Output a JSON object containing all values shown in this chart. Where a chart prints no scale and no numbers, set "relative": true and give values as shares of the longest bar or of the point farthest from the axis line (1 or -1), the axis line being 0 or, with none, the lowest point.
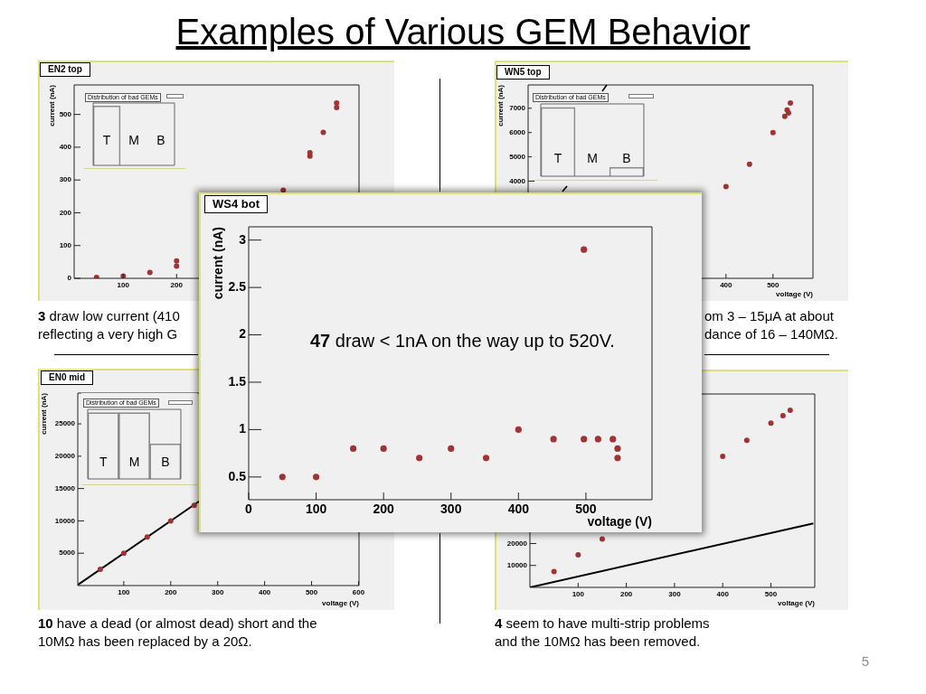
{
  "chart_data": [
    {
      "type": "other",
      "title": "Examples of Various GEM Behavior",
      "annotations": [
        "5"
      ]
    },
    {
      "type": "scatter",
      "title": "EN2 top",
      "ylabel": "current (nA)",
      "xlim": [
        8,
        542
      ],
      "ylim": [
        0,
        590
      ],
      "xticks": [
        100,
        200
      ],
      "yticks": [
        0,
        100,
        200,
        300,
        400,
        500
      ],
      "marker": "circle",
      "series": [
        {
          "color": "#9e3434",
          "x": [
            50,
            100,
            150,
            200,
            200,
            400,
            450,
            450,
            475,
            500,
            500
          ],
          "values": [
            3,
            7,
            18,
            37,
            53,
            269,
            383,
            373,
            445,
            535,
            521
          ]
        }
      ],
      "annotations": [
        "3 draw low current (410\nreflecting a very high G"
      ]
    },
    {
      "type": "bar",
      "title": "Distribution of bad GEMs",
      "categories": [
        "T",
        "M",
        "B"
      ],
      "values": [
        1,
        0,
        0
      ],
      "relative": true,
      "color": "#8c8c8c"
    },
    {
      "type": "scatter",
      "title": "WN5 top",
      "xlabel": "voltage (V)",
      "ylabel": "current (nA)",
      "xlim": [
        -21,
        585
      ],
      "ylim": [
        0,
        7960
      ],
      "xticks": [
        400,
        500
      ],
      "yticks": [
        4000,
        5000,
        6000,
        7000
      ],
      "marker": "circle",
      "series": [
        {
          "color": "#9e3434",
          "x": [
            400,
            450,
            500,
            525,
            530,
            533,
            537
          ],
          "values": [
            3780,
            4700,
            6000,
            6670,
            6930,
            6810,
            7220
          ]
        }
      ],
      "annotations": [
        "om 3 – 15μA at about\ndance of 16 – 140MΩ."
      ]
    },
    {
      "type": "bar",
      "title": "Distribution of bad GEMs",
      "categories": [
        "T",
        "M",
        "B"
      ],
      "values": [
        1,
        0,
        0.13
      ],
      "relative": true,
      "color": "#8c8c8c"
    },
    {
      "type": "scatter",
      "title": "WS4 bot",
      "xlabel": "voltage (V)",
      "ylabel": "current (nA)",
      "xlim": [
        0,
        598
      ],
      "ylim": [
        0.26,
        3.14
      ],
      "xticks": [
        0,
        100,
        200,
        300,
        400,
        500
      ],
      "yticks": [
        0.5,
        1,
        1.5,
        2,
        2.5,
        3
      ],
      "marker": "circle",
      "series": [
        {
          "color": "#9e3434",
          "x": [
            50,
            100,
            155,
            200,
            253,
            300,
            352,
            400,
            452,
            497,
            497,
            518,
            540,
            547,
            547
          ],
          "values": [
            0.5,
            0.5,
            0.8,
            0.8,
            0.7,
            0.8,
            0.7,
            1.0,
            0.9,
            0.9,
            2.9,
            0.9,
            0.9,
            0.8,
            0.7
          ]
        }
      ],
      "annotations": [
        "47 draw < 1nA on the way up to 520V."
      ]
    },
    {
      "type": "scatter",
      "title": "EN0 mid",
      "xlabel": "voltage (V)",
      "ylabel": "current (nA)",
      "xlim": [
        2,
        601
      ],
      "ylim": [
        0,
        29760
      ],
      "xticks": [
        100,
        200,
        300,
        400,
        500,
        600
      ],
      "yticks": [
        5000,
        10000,
        15000,
        20000,
        25000
      ],
      "marker": "circle",
      "series": [
        {
          "color": "#9e3434",
          "x": [
            50,
            100,
            150,
            200,
            250
          ],
          "values": [
            2500,
            5000,
            7500,
            10000,
            12400
          ]
        },
        {
          "type": "line",
          "marker": "none",
          "color": "#000000",
          "x": [
            2,
            262
          ],
          "values": [
            100,
            13100
          ]
        }
      ],
      "annotations": [
        "10 have a dead (or almost dead) short and the\n10MΩ has been replaced by a 20Ω."
      ]
    },
    {
      "type": "bar",
      "title": "Distribution of bad GEMs",
      "categories": [
        "T",
        "M",
        "B"
      ],
      "values": [
        1,
        1,
        0.53
      ],
      "relative": true,
      "color": "#8c8c8c"
    },
    {
      "type": "scatter",
      "xlabel": "voltage (V)",
      "xlim": [
        0,
        591
      ],
      "ylim": [
        0,
        88200
      ],
      "xticks": [
        100,
        200,
        300,
        400,
        500
      ],
      "yticks": [
        10000,
        20000
      ],
      "marker": "circle",
      "series": [
        {
          "color": "#9e3434",
          "x": [
            50,
            100,
            150,
            400,
            450,
            500,
            525,
            540
          ],
          "values": [
            7200,
            14800,
            22000,
            59800,
            67100,
            74900,
            78300,
            80800
          ]
        },
        {
          "type": "line",
          "marker": "none",
          "color": "#000000",
          "x": [
            0,
            588
          ],
          "values": [
            0,
            29200
          ]
        }
      ],
      "annotations": [
        "4 seem to have multi-strip problems\nand the 10MΩ has been removed."
      ]
    }
  ]
}
